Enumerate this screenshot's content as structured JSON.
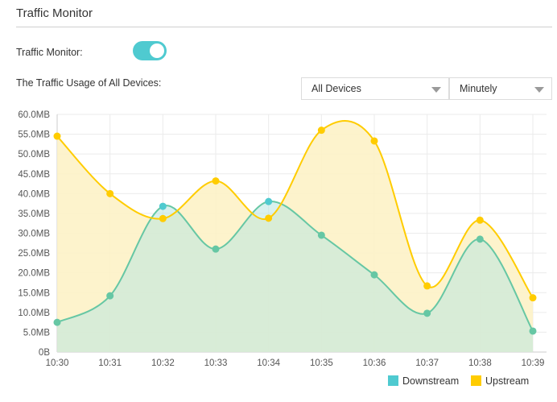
{
  "header": {
    "title": "Traffic Monitor"
  },
  "monitor": {
    "label": "Traffic Monitor:",
    "enabled": true
  },
  "usage": {
    "label": "The Traffic Usage of All Devices:"
  },
  "filters": {
    "device": {
      "selected": "All Devices"
    },
    "interval": {
      "selected": "Minutely"
    }
  },
  "colors": {
    "downstream": "#4fcad0",
    "upstream": "#ffcc00",
    "upstream_fill": "#fdf2c6",
    "downstream_fill": "#d8e8bf",
    "toggle_on": "#4fcad0"
  },
  "chart_data": {
    "type": "area",
    "categories": [
      "10:30",
      "10:31",
      "10:32",
      "10:33",
      "10:34",
      "10:35",
      "10:36",
      "10:37",
      "10:38",
      "10:39"
    ],
    "series": [
      {
        "name": "Downstream",
        "values": [
          7.5,
          14.2,
          36.8,
          26,
          38,
          29.5,
          19.5,
          9.8,
          28.5,
          5.3
        ]
      },
      {
        "name": "Upstream",
        "values": [
          54.5,
          40,
          33.7,
          43.2,
          33.8,
          56,
          53.3,
          16.7,
          33.3,
          13.7
        ]
      }
    ],
    "ylim": [
      0,
      60
    ],
    "yticks": [
      "0B",
      "5.0MB",
      "10.0MB",
      "15.0MB",
      "20.0MB",
      "25.0MB",
      "30.0MB",
      "35.0MB",
      "40.0MB",
      "45.0MB",
      "50.0MB",
      "55.0MB",
      "60.0MB"
    ],
    "grid": true,
    "legend": "bottom-right"
  }
}
